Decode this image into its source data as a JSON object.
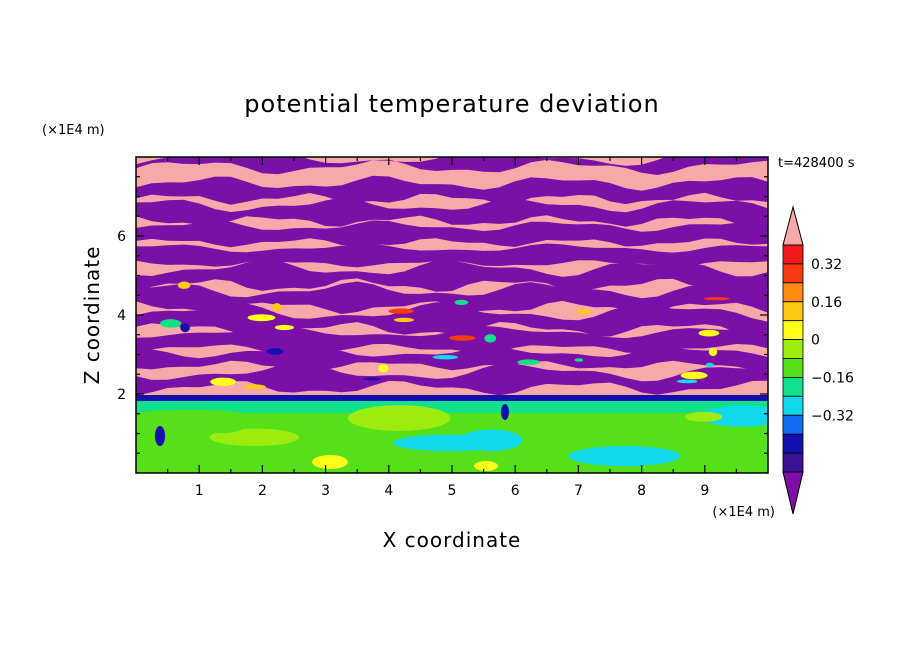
{
  "chart_data": {
    "type": "heatmap",
    "title": "potential temperature deviation",
    "xlabel": "X coordinate",
    "ylabel": "Z coordinate",
    "x_unit": "(×1E4 m)",
    "y_unit": "(×1E4 m)",
    "time_label": "t=428400 s",
    "xlim": [
      0,
      10
    ],
    "ylim": [
      0,
      8
    ],
    "x_ticks": [
      "1",
      "2",
      "3",
      "4",
      "5",
      "6",
      "7",
      "8",
      "9"
    ],
    "y_ticks": [
      "2",
      "4",
      "6"
    ],
    "colorbar": {
      "levels": [
        -0.48,
        -0.4,
        -0.32,
        -0.24,
        -0.16,
        -0.08,
        0,
        0.08,
        0.16,
        0.24,
        0.32,
        0.4,
        0.48
      ],
      "colors": [
        "#7b0fa8",
        "#3b1296",
        "#1410b0",
        "#0f6ef0",
        "#12d8ee",
        "#12e08a",
        "#55e01a",
        "#9cec10",
        "#ffff1a",
        "#ffc814",
        "#ff8a10",
        "#f83a10",
        "#ef1a1a",
        "#f8a8a8"
      ],
      "tick_labels": [
        "0.32",
        "0.16",
        "0",
        "−0.16",
        "−0.32"
      ]
    }
  }
}
